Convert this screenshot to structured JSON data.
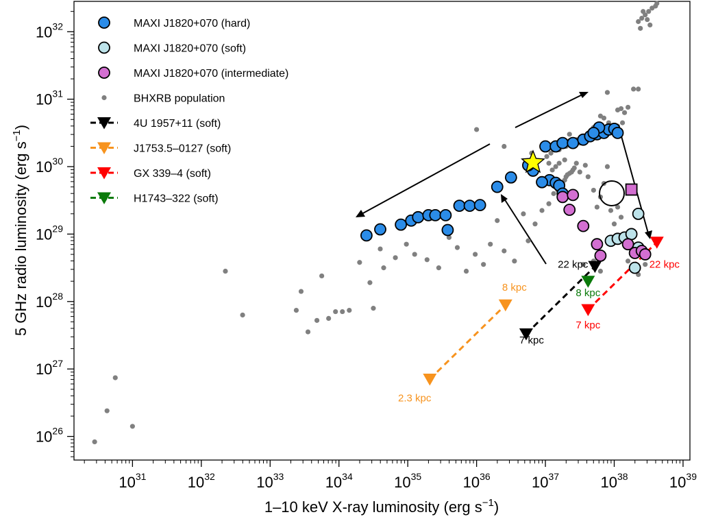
{
  "chart_data": {
    "type": "scatter",
    "xlabel": "1–10 keV X-ray luminosity (erg s⁻¹)",
    "ylabel": "5 GHz radio luminosity (erg s⁻¹)",
    "xlabel_parts": [
      "1–10 keV X-ray luminosity (erg s",
      "−1",
      ")"
    ],
    "ylabel_parts": [
      "5 GHz radio luminosity (erg s",
      "−1",
      ")"
    ],
    "x_scale": "log",
    "y_scale": "log",
    "xlim_log10": [
      30.15,
      39.1
    ],
    "ylim_log10": [
      25.65,
      32.45
    ],
    "x_ticks": [
      {
        "base": "10",
        "exp": "31",
        "log": 31
      },
      {
        "base": "10",
        "exp": "32",
        "log": 32
      },
      {
        "base": "10",
        "exp": "33",
        "log": 33
      },
      {
        "base": "10",
        "exp": "34",
        "log": 34
      },
      {
        "base": "10",
        "exp": "35",
        "log": 35
      },
      {
        "base": "10",
        "exp": "36",
        "log": 36
      },
      {
        "base": "10",
        "exp": "37",
        "log": 37
      },
      {
        "base": "10",
        "exp": "38",
        "log": 38
      },
      {
        "base": "10",
        "exp": "39",
        "log": 39
      }
    ],
    "y_ticks": [
      {
        "base": "10",
        "exp": "26",
        "log": 26
      },
      {
        "base": "10",
        "exp": "27",
        "log": 27
      },
      {
        "base": "10",
        "exp": "28",
        "log": 28
      },
      {
        "base": "10",
        "exp": "29",
        "log": 29
      },
      {
        "base": "10",
        "exp": "30",
        "log": 30
      },
      {
        "base": "10",
        "exp": "31",
        "log": 31
      },
      {
        "base": "10",
        "exp": "32",
        "log": 32
      }
    ],
    "legend_position": "top-left",
    "legend": [
      {
        "label": "MAXI J1820+070 (hard)",
        "marker": "circle",
        "color": "#2b8ce8"
      },
      {
        "label": "MAXI J1820+070 (soft)",
        "marker": "circle",
        "color": "#bde3ea"
      },
      {
        "label": "MAXI J1820+070 (intermediate)",
        "marker": "circle",
        "color": "#d36fd1"
      },
      {
        "label": "BHXRB population",
        "marker": "dot",
        "color": "#808080"
      },
      {
        "label": "4U 1957+11 (soft)",
        "marker": "triangle-down-dashed",
        "color": "#000000"
      },
      {
        "label": "J1753.5–0127 (soft)",
        "marker": "triangle-down-dashed",
        "color": "#f7931e"
      },
      {
        "label": "GX 339–4 (soft)",
        "marker": "triangle-down-dashed",
        "color": "#ff0000"
      },
      {
        "label": "H1743–322 (soft)",
        "marker": "triangle-down-dashed",
        "color": "#0a7a0a"
      }
    ],
    "series": [
      {
        "name": "MAXI J1820+070 (hard)",
        "color": "#2b8ce8",
        "points": [
          [
            34.4,
            28.98
          ],
          [
            34.6,
            29.07
          ],
          [
            34.9,
            29.14
          ],
          [
            35.05,
            29.2
          ],
          [
            35.15,
            29.25
          ],
          [
            35.3,
            29.28
          ],
          [
            35.4,
            29.28
          ],
          [
            35.55,
            29.28
          ],
          [
            35.58,
            29.06
          ],
          [
            35.75,
            29.42
          ],
          [
            35.9,
            29.42
          ],
          [
            36.05,
            29.43
          ],
          [
            36.3,
            29.7
          ],
          [
            36.5,
            29.84
          ],
          [
            36.82,
            29.94
          ],
          [
            37.06,
            29.8
          ],
          [
            36.95,
            29.77
          ],
          [
            37.15,
            29.76
          ],
          [
            37.2,
            29.72
          ],
          [
            37.25,
            29.6
          ],
          [
            36.75,
            30.02
          ],
          [
            37.0,
            30.3
          ],
          [
            37.15,
            30.3
          ],
          [
            37.25,
            30.35
          ],
          [
            37.4,
            30.35
          ],
          [
            37.55,
            30.4
          ],
          [
            37.65,
            30.45
          ],
          [
            37.75,
            30.48
          ],
          [
            37.85,
            30.5
          ],
          [
            37.92,
            30.55
          ],
          [
            38.0,
            30.56
          ],
          [
            38.05,
            30.5
          ],
          [
            37.78,
            30.58
          ],
          [
            37.7,
            30.5
          ]
        ]
      },
      {
        "name": "MAXI J1820+070 (soft)",
        "color": "#bde3ea",
        "points": [
          [
            37.95,
            28.9
          ],
          [
            38.05,
            28.93
          ],
          [
            38.15,
            28.95
          ],
          [
            38.25,
            29.0
          ],
          [
            38.35,
            28.8
          ],
          [
            38.35,
            29.3
          ],
          [
            38.3,
            28.5
          ]
        ]
      },
      {
        "name": "MAXI J1820+070 (intermediate)",
        "color": "#d36fd1",
        "points": [
          [
            37.25,
            29.55
          ],
          [
            37.4,
            29.58
          ],
          [
            37.35,
            29.36
          ],
          [
            37.55,
            29.12
          ],
          [
            37.75,
            28.85
          ],
          [
            37.8,
            28.68
          ],
          [
            38.2,
            28.85
          ],
          [
            38.3,
            28.72
          ],
          [
            38.4,
            28.75
          ],
          [
            38.45,
            28.7
          ]
        ]
      },
      {
        "name": "MAXI J1820+070 (intermediate, outlier)",
        "color": "#d36fd1",
        "marker": "square",
        "points": [
          [
            38.25,
            29.66
          ]
        ]
      },
      {
        "name": "BHXRB population",
        "color": "#808080",
        "points": [
          [
            30.45,
            25.92
          ],
          [
            30.63,
            26.38
          ],
          [
            30.75,
            26.87
          ],
          [
            31.0,
            26.15
          ],
          [
            32.35,
            28.45
          ],
          [
            32.6,
            27.8
          ],
          [
            33.38,
            27.87
          ],
          [
            33.45,
            28.15
          ],
          [
            33.55,
            27.55
          ],
          [
            33.68,
            27.72
          ],
          [
            33.75,
            28.38
          ],
          [
            33.85,
            27.75
          ],
          [
            33.95,
            27.85
          ],
          [
            34.05,
            27.85
          ],
          [
            34.15,
            27.87
          ],
          [
            34.3,
            28.58
          ],
          [
            34.45,
            28.28
          ],
          [
            34.5,
            27.9
          ],
          [
            34.6,
            28.78
          ],
          [
            34.65,
            28.5
          ],
          [
            34.82,
            28.65
          ],
          [
            34.98,
            28.85
          ],
          [
            35.1,
            28.7
          ],
          [
            35.28,
            28.62
          ],
          [
            35.45,
            28.5
          ],
          [
            35.6,
            28.95
          ],
          [
            35.72,
            28.8
          ],
          [
            35.85,
            28.45
          ],
          [
            35.98,
            28.7
          ],
          [
            36.1,
            28.55
          ],
          [
            36.2,
            28.85
          ],
          [
            36.3,
            29.2
          ],
          [
            36.4,
            28.75
          ],
          [
            36.55,
            28.6
          ],
          [
            36.68,
            29.3
          ],
          [
            36.75,
            28.9
          ],
          [
            36.85,
            29.15
          ],
          [
            36.95,
            29.35
          ],
          [
            37.05,
            29.45
          ],
          [
            37.12,
            29.6
          ],
          [
            37.18,
            29.65
          ],
          [
            37.22,
            29.7
          ],
          [
            37.25,
            29.75
          ],
          [
            37.28,
            29.8
          ],
          [
            37.3,
            29.85
          ],
          [
            37.32,
            29.88
          ],
          [
            37.35,
            29.9
          ],
          [
            37.38,
            29.92
          ],
          [
            37.4,
            29.95
          ],
          [
            37.42,
            29.98
          ],
          [
            37.28,
            30.1
          ],
          [
            37.2,
            30.05
          ],
          [
            37.15,
            30.0
          ],
          [
            37.1,
            29.95
          ],
          [
            37.05,
            30.05
          ],
          [
            37.02,
            30.15
          ],
          [
            37.08,
            30.2
          ],
          [
            37.2,
            30.25
          ],
          [
            37.3,
            30.3
          ],
          [
            37.4,
            30.32
          ],
          [
            37.5,
            30.35
          ],
          [
            37.45,
            30.05
          ],
          [
            37.5,
            29.92
          ],
          [
            37.58,
            30.02
          ],
          [
            37.62,
            29.85
          ],
          [
            37.7,
            29.65
          ],
          [
            37.75,
            29.4
          ],
          [
            37.8,
            29.55
          ],
          [
            37.85,
            29.75
          ],
          [
            37.9,
            30.0
          ],
          [
            37.95,
            29.35
          ],
          [
            38.0,
            29.15
          ],
          [
            38.05,
            29.4
          ],
          [
            38.1,
            29.25
          ],
          [
            37.98,
            30.5
          ],
          [
            38.05,
            30.6
          ],
          [
            38.12,
            30.65
          ],
          [
            38.15,
            30.8
          ],
          [
            38.05,
            30.84
          ],
          [
            38.1,
            30.86
          ],
          [
            38.2,
            30.88
          ],
          [
            37.8,
            30.75
          ],
          [
            37.85,
            30.72
          ],
          [
            37.92,
            30.65
          ],
          [
            38.28,
            31.15
          ],
          [
            38.35,
            31.15
          ],
          [
            37.9,
            31.1
          ],
          [
            37.5,
            30.4
          ],
          [
            37.35,
            30.48
          ],
          [
            36.8,
            30.2
          ],
          [
            36.4,
            30.3
          ],
          [
            36.0,
            30.55
          ],
          [
            37.7,
            30.58
          ],
          [
            37.65,
            30.52
          ],
          [
            37.55,
            30.45
          ],
          [
            37.45,
            30.4
          ],
          [
            37.35,
            30.38
          ],
          [
            38.25,
            29.0
          ],
          [
            38.2,
            28.6
          ],
          [
            38.35,
            28.4
          ],
          [
            38.45,
            28.55
          ],
          [
            37.7,
            28.6
          ],
          [
            37.8,
            28.45
          ],
          [
            37.55,
            28.55
          ],
          [
            38.35,
            32.15
          ],
          [
            38.4,
            32.2
          ],
          [
            38.45,
            32.25
          ],
          [
            38.5,
            32.3
          ],
          [
            38.55,
            32.35
          ],
          [
            38.6,
            32.38
          ],
          [
            38.62,
            32.42
          ],
          [
            38.42,
            32.3
          ],
          [
            38.48,
            32.18
          ],
          [
            38.52,
            32.1
          ],
          [
            38.38,
            32.05
          ]
        ]
      },
      {
        "name": "4U 1957+11 (soft)",
        "color": "#000000",
        "distances": [
          "7 kpc",
          "22 kpc"
        ],
        "points": [
          [
            36.72,
            27.52
          ],
          [
            37.72,
            28.52
          ]
        ]
      },
      {
        "name": "J1753.5–0127 (soft)",
        "color": "#f7931e",
        "distances": [
          "2.3 kpc",
          "8 kpc"
        ],
        "points": [
          [
            35.32,
            26.85
          ],
          [
            36.42,
            27.95
          ]
        ]
      },
      {
        "name": "GX 339–4 (soft)",
        "color": "#ff0000",
        "distances": [
          "7 kpc",
          "22 kpc"
        ],
        "points": [
          [
            37.62,
            27.88
          ],
          [
            38.62,
            28.88
          ]
        ]
      },
      {
        "name": "H1743–322 (soft)",
        "color": "#0a7a0a",
        "distances": [
          "8 kpc"
        ],
        "points": [
          [
            37.62,
            28.3
          ]
        ]
      },
      {
        "name": "MAXI J1820+070 (marker star)",
        "color": "#ffff00",
        "marker": "star",
        "points": [
          [
            36.82,
            30.06
          ]
        ]
      }
    ],
    "annotations": [
      {
        "text": "22 kpc",
        "color": "#000000",
        "at": [
          37.4,
          28.5
        ]
      },
      {
        "text": "7 kpc",
        "color": "#000000",
        "at": [
          36.8,
          27.38
        ]
      },
      {
        "text": "8 kpc",
        "color": "#f7931e",
        "at": [
          36.55,
          28.16
        ]
      },
      {
        "text": "2.3 kpc",
        "color": "#f7931e",
        "at": [
          35.1,
          26.52
        ]
      },
      {
        "text": "8 kpc",
        "color": "#0a7a0a",
        "at": [
          37.62,
          28.08
        ]
      },
      {
        "text": "7 kpc",
        "color": "#ff0000",
        "at": [
          37.62,
          27.6
        ]
      },
      {
        "text": "22 kpc",
        "color": "#ff0000",
        "at": [
          38.73,
          28.5
        ]
      }
    ]
  }
}
